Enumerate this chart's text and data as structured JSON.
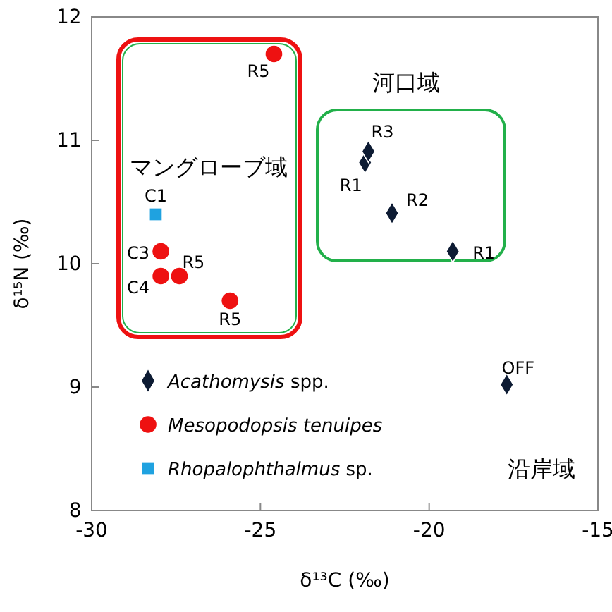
{
  "chart_data": {
    "type": "scatter",
    "xlabel": "δ¹³C (‰)",
    "ylabel": "δ¹⁵N (‰)",
    "xlim": [
      -30,
      -15
    ],
    "xticks": [
      -30,
      -25,
      -20,
      -15
    ],
    "ylim": [
      8,
      12
    ],
    "yticks": [
      8,
      9,
      10,
      11,
      12
    ],
    "legend": "bottom left",
    "grid": false,
    "series": [
      {
        "name": "Acathomysis spp.",
        "color": "#0d1b33",
        "marker": "diamond",
        "x": [
          -21.9,
          -21.8,
          -21.1,
          -19.3,
          -17.7
        ],
        "values": [
          10.82,
          10.91,
          10.41,
          10.1,
          9.02
        ]
      },
      {
        "name": "Mesopodopsis tenuipes",
        "color": "#ee1111",
        "marker": "circle",
        "x": [
          -24.6,
          -27.95,
          -27.95,
          -27.4,
          -25.9
        ],
        "values": [
          11.7,
          10.1,
          9.9,
          9.9,
          9.7
        ]
      },
      {
        "name": "Rhopalophthalmus sp.",
        "color": "#1fa2e0",
        "marker": "square",
        "x": [
          -28.1
        ],
        "values": [
          10.4
        ]
      }
    ],
    "annotations": [
      {
        "text": "R5",
        "x": -24.6,
        "y": 11.7
      },
      {
        "text": "C3",
        "x": -27.95,
        "y": 10.1
      },
      {
        "text": "C4",
        "x": -27.95,
        "y": 9.9
      },
      {
        "text": "R5",
        "x": -27.4,
        "y": 9.9
      },
      {
        "text": "R5",
        "x": -25.9,
        "y": 9.7
      },
      {
        "text": "C1",
        "x": -28.1,
        "y": 10.4
      },
      {
        "text": "R1",
        "x": -21.9,
        "y": 10.82
      },
      {
        "text": "R3",
        "x": -21.8,
        "y": 10.91
      },
      {
        "text": "R2",
        "x": -21.1,
        "y": 10.41
      },
      {
        "text": "R1",
        "x": -19.3,
        "y": 10.1
      },
      {
        "text": "OFF",
        "x": -17.7,
        "y": 9.02
      },
      "マングローブ域",
      "河口域",
      "沿岸域"
    ]
  }
}
